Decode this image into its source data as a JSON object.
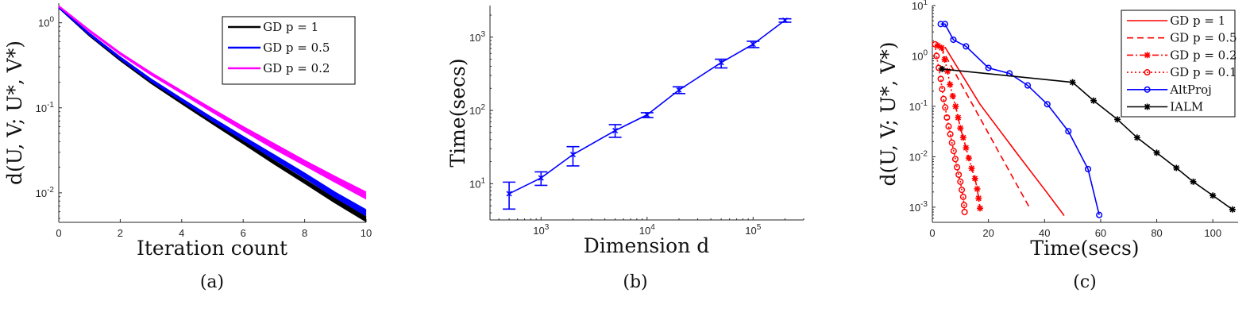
{
  "chart_data": [
    {
      "type": "line",
      "caption": "(a)",
      "xlabel": "Iteration count",
      "ylabel": "d(U, V; U*, V*)",
      "xscale": "linear",
      "yscale": "log",
      "xlim": [
        0,
        10
      ],
      "ylim": [
        0.0045,
        1.7
      ],
      "xticks": [
        "0",
        "2",
        "4",
        "6",
        "8",
        "10"
      ],
      "yticks": [
        "10^-2",
        "10^-1",
        "10^0"
      ],
      "legend_position": "top-right",
      "x": [
        0,
        1,
        2,
        3,
        4,
        5,
        6,
        7,
        8,
        9,
        10
      ],
      "series": [
        {
          "name": "GD p = 1",
          "color": "#000000",
          "lower": [
            1.5,
            0.7,
            0.36,
            0.195,
            0.112,
            0.065,
            0.038,
            0.022,
            0.013,
            0.0076,
            0.0046
          ],
          "upper": [
            1.5,
            0.73,
            0.38,
            0.205,
            0.118,
            0.069,
            0.041,
            0.024,
            0.0143,
            0.0085,
            0.0052
          ]
        },
        {
          "name": "GD p = 0.5",
          "color": "#0000ff",
          "lower": [
            1.5,
            0.72,
            0.375,
            0.205,
            0.12,
            0.07,
            0.042,
            0.025,
            0.015,
            0.0088,
            0.0054
          ],
          "upper": [
            1.52,
            0.75,
            0.395,
            0.218,
            0.128,
            0.076,
            0.046,
            0.028,
            0.017,
            0.0101,
            0.0063
          ]
        },
        {
          "name": "GD p = 0.2",
          "color": "#ff00ff",
          "lower": [
            1.55,
            0.79,
            0.425,
            0.245,
            0.148,
            0.089,
            0.054,
            0.033,
            0.021,
            0.0133,
            0.0085
          ],
          "upper": [
            1.58,
            0.82,
            0.445,
            0.26,
            0.158,
            0.097,
            0.06,
            0.038,
            0.024,
            0.0155,
            0.0102
          ]
        }
      ]
    },
    {
      "type": "line",
      "caption": "(b)",
      "xlabel": "Dimension d",
      "ylabel": "Time(secs)",
      "xscale": "log",
      "yscale": "log",
      "xlim": [
        330,
        300000
      ],
      "ylim": [
        3.2,
        2700
      ],
      "xticks": [
        "10^3",
        "10^4",
        "10^5"
      ],
      "yticks": [
        "10^1",
        "10^2",
        "10^3"
      ],
      "series": [
        {
          "name": "Time",
          "color": "#0000ff",
          "marker": "x",
          "x": [
            500,
            1000,
            2000,
            5000,
            10000,
            20000,
            50000,
            100000,
            200000
          ],
          "y": [
            7.3,
            12,
            25,
            53,
            87,
            190,
            450,
            800,
            1700
          ],
          "err_low": [
            4.5,
            9.5,
            17.5,
            43,
            80,
            170,
            380,
            720,
            1600
          ],
          "err_high": [
            10.5,
            14.5,
            32,
            64,
            93,
            210,
            500,
            880,
            1780
          ]
        }
      ]
    },
    {
      "type": "line",
      "caption": "(c)",
      "xlabel": "Time(secs)",
      "ylabel": "d(U, V; U*, V*)",
      "xscale": "linear",
      "yscale": "log",
      "xlim": [
        0,
        109
      ],
      "ylim": [
        0.0005,
        10
      ],
      "xticks": [
        "0",
        "20",
        "40",
        "60",
        "80",
        "100"
      ],
      "yticks": [
        "10^-3",
        "10^-2",
        "10^-1",
        "10^0",
        "10^1"
      ],
      "legend_position": "top-right",
      "series": [
        {
          "name": "GD p = 1",
          "color": "#ff0000",
          "dash": "solid",
          "marker": "none",
          "x": [
            4.5,
            17,
            30,
            41,
            47
          ],
          "y": [
            1.5,
            0.11,
            0.012,
            0.0019,
            0.00068
          ]
        },
        {
          "name": "GD p = 0.5",
          "color": "#ff0000",
          "dash": "dashed",
          "marker": "none",
          "x": [
            3,
            35
          ],
          "y": [
            1.5,
            0.0009
          ]
        },
        {
          "name": "GD p = 0.2",
          "color": "#ff0000",
          "dash": "dashdot",
          "marker": "asterisk",
          "x": [
            2,
            3.3,
            4.4,
            5.4,
            6.3,
            7.3,
            8.3,
            9.2,
            10,
            11,
            12,
            13,
            14,
            15.2,
            16,
            16.5,
            17
          ],
          "y": [
            1.6,
            1.45,
            0.85,
            0.5,
            0.27,
            0.16,
            0.1,
            0.06,
            0.037,
            0.024,
            0.015,
            0.0094,
            0.0059,
            0.0037,
            0.0023,
            0.0015,
            0.00095
          ]
        },
        {
          "name": "GD p = 0.1",
          "color": "#ff0000",
          "dash": "dotted",
          "marker": "circle",
          "x": [
            1,
            1.5,
            2.3,
            3,
            3.5,
            4,
            4.6,
            5.2,
            5.8,
            6.4,
            7,
            7.6,
            8.2,
            8.8,
            9.4,
            10,
            10.5,
            11,
            11.3,
            11.5
          ],
          "y": [
            1.7,
            1.0,
            0.58,
            0.35,
            0.22,
            0.14,
            0.095,
            0.06,
            0.04,
            0.028,
            0.019,
            0.013,
            0.009,
            0.0062,
            0.0044,
            0.0032,
            0.0022,
            0.0016,
            0.0011,
            0.0008
          ]
        },
        {
          "name": "AltProj",
          "color": "#0000ff",
          "dash": "solid",
          "marker": "circle",
          "x": [
            3,
            4.5,
            7.5,
            12,
            20,
            27.5,
            34,
            41,
            48.5,
            55.5,
            59.5
          ],
          "y": [
            4.3,
            4.3,
            2.1,
            1.55,
            0.58,
            0.45,
            0.26,
            0.11,
            0.032,
            0.0057,
            0.0007
          ]
        },
        {
          "name": "IALM",
          "color": "#000000",
          "dash": "solid",
          "marker": "asterisk",
          "x": [
            3.5,
            50,
            57.5,
            66,
            73,
            80,
            87,
            93,
            100,
            107
          ],
          "y": [
            0.55,
            0.3,
            0.13,
            0.055,
            0.024,
            0.012,
            0.006,
            0.0032,
            0.0017,
            0.0009
          ]
        }
      ]
    }
  ]
}
